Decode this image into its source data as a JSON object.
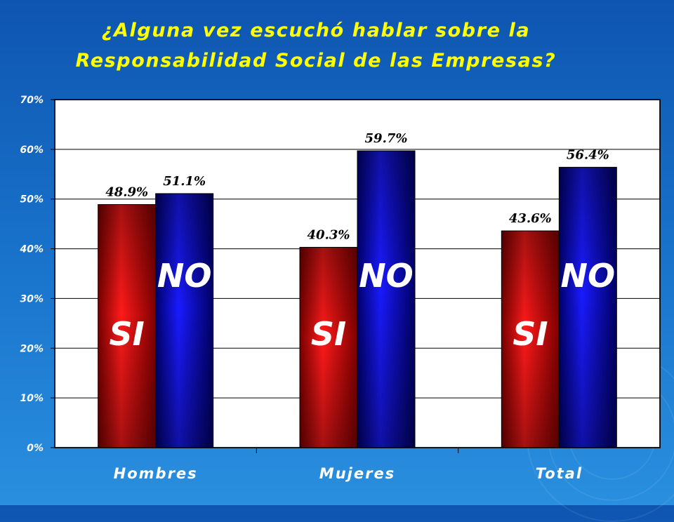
{
  "slide": {
    "title_line1": "¿Alguna vez escuchó hablar sobre la",
    "title_line2": "Responsabilidad Social de las Empresas?"
  },
  "colors": {
    "background": "#1565c0",
    "title": "#ffff00",
    "plot_area": "#ffffff",
    "si_bar": "#cc0000",
    "no_bar": "#0000cc"
  },
  "chart_data": {
    "type": "bar",
    "title": "¿Alguna vez escuchó hablar sobre la Responsabilidad Social de las Empresas?",
    "categories": [
      "Hombres",
      "Mujeres",
      "Total"
    ],
    "series": [
      {
        "name": "SI",
        "values": [
          48.9,
          40.3,
          43.6
        ],
        "labels": [
          "48.9%",
          "40.3%",
          "43.6%"
        ],
        "color": "#cc0000"
      },
      {
        "name": "NO",
        "values": [
          51.1,
          59.7,
          56.4
        ],
        "labels": [
          "51.1%",
          "59.7%",
          "56.4%"
        ],
        "color": "#0000cc"
      }
    ],
    "ylim": [
      0,
      70
    ],
    "yticks": [
      0,
      10,
      20,
      30,
      40,
      50,
      60,
      70
    ],
    "ytick_labels": [
      "0%",
      "10%",
      "20%",
      "30%",
      "40%",
      "50%",
      "60%",
      "70%"
    ],
    "xlabel": "",
    "ylabel": "",
    "grid": true,
    "legend": "none"
  }
}
